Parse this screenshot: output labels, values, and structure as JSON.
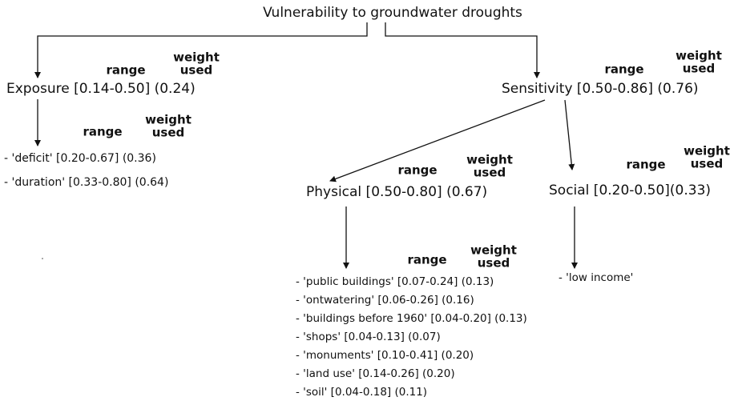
{
  "title": "Vulnerability to groundwater droughts",
  "nodes": [
    {
      "label": "Exposure [0.14-0.50] (0.24)",
      "header": {
        "range": "range",
        "weight": [
          "weight",
          "used"
        ]
      }
    },
    {
      "label": "Sensitivity [0.50-0.86] (0.76)",
      "header": {
        "range": "range",
        "weight": [
          "weight",
          "used"
        ]
      }
    },
    {
      "label": "Physical [0.50-0.80] (0.67)",
      "header": {
        "range": "range",
        "weight": [
          "weight",
          "used"
        ]
      }
    },
    {
      "label": "Social [0.20-0.50](0.33)",
      "header": {
        "range": "range",
        "weight": [
          "weight",
          "used"
        ]
      }
    }
  ],
  "lists": [
    {
      "header": {
        "range": "range",
        "weight": [
          "weight",
          "used"
        ]
      },
      "items": [
        "- 'deficit' [0.20-0.67] (0.36)",
        "- 'duration' [0.33-0.80] (0.64)"
      ]
    },
    {
      "header": {
        "range": "range",
        "weight": [
          "weight",
          "used"
        ]
      },
      "items": [
        "- 'public buildings' [0.07-0.24] (0.13)",
        "- 'ontwatering' [0.06-0.26] (0.16)",
        "- 'buildings before 1960' [0.04-0.20] (0.13)",
        "- 'shops' [0.04-0.13] (0.07)",
        "- 'monuments' [0.10-0.41] (0.20)",
        "- 'land use' [0.14-0.26] (0.20)",
        "- 'soil' [0.04-0.18] (0.11)"
      ]
    },
    {
      "items": [
        "- 'low income'"
      ]
    }
  ]
}
